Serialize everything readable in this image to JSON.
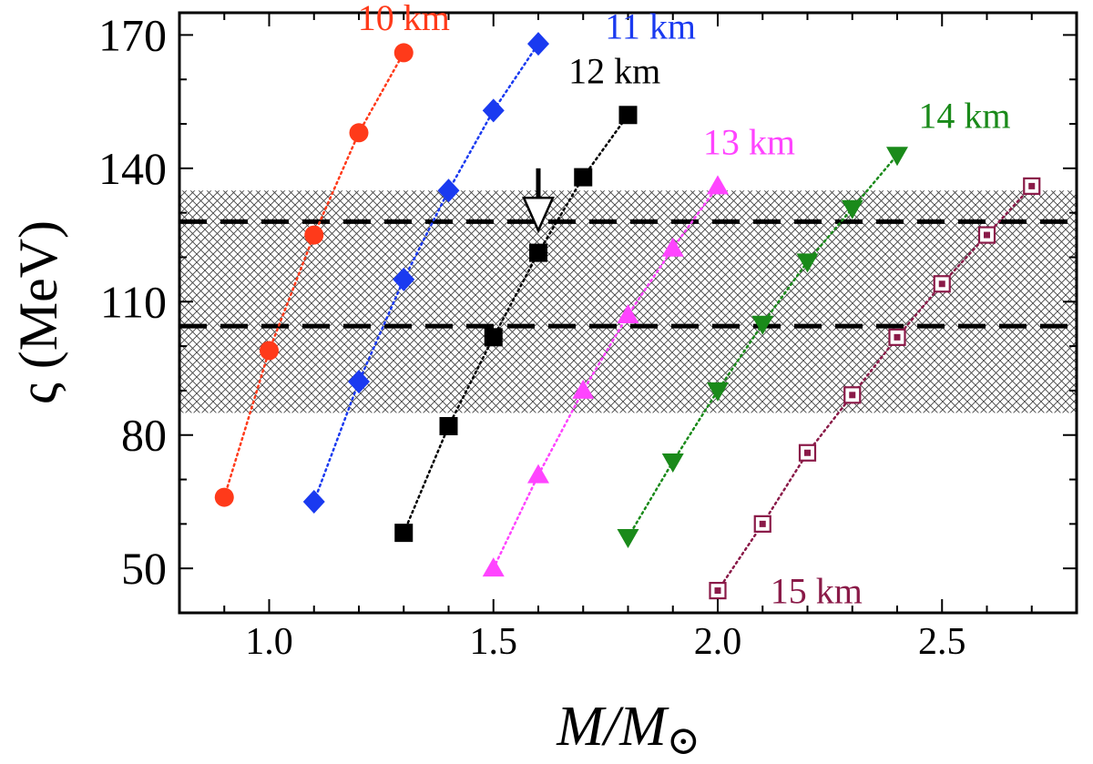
{
  "chart_data": {
    "type": "scatter",
    "xlabel": "M/M⊙",
    "xlabel_main": "M/M",
    "xlabel_sub": "⊙",
    "ylabel": "ς (MeV)",
    "xlim": [
      0.8,
      2.8
    ],
    "ylim": [
      40,
      175
    ],
    "x_ticks": [
      1.0,
      1.5,
      2.0,
      2.5
    ],
    "x_tick_labels": [
      "1.0",
      "1.5",
      "2.0",
      "2.5"
    ],
    "x_minor_step": 0.1,
    "y_ticks": [
      50,
      80,
      110,
      140,
      170
    ],
    "y_tick_labels": [
      "50",
      "80",
      "110",
      "140",
      "170"
    ],
    "y_minor_step": 10,
    "band": [
      85,
      135
    ],
    "hlines": [
      104.5,
      128
    ],
    "arrow": {
      "x": 1.6,
      "y_top": 140,
      "y_tip": 126
    },
    "series": [
      {
        "name": "10 km",
        "color": "#ff3a1a",
        "marker": "circle",
        "x": [
          0.9,
          1.0,
          1.1,
          1.2,
          1.3
        ],
        "y": [
          66,
          99,
          125,
          148,
          166
        ],
        "label_at": [
          1.3,
          174
        ]
      },
      {
        "name": "11 km",
        "color": "#1a3af0",
        "marker": "diamond",
        "x": [
          1.1,
          1.2,
          1.3,
          1.4,
          1.5,
          1.6
        ],
        "y": [
          65,
          92,
          115,
          135,
          153,
          168
        ],
        "label_at": [
          1.85,
          172
        ]
      },
      {
        "name": "12 km",
        "color": "#000000",
        "marker": "square",
        "x": [
          1.3,
          1.4,
          1.5,
          1.6,
          1.7,
          1.8
        ],
        "y": [
          58,
          82,
          102,
          121,
          138,
          152
        ],
        "label_at": [
          1.77,
          162
        ]
      },
      {
        "name": "13 km",
        "color": "#ff44ff",
        "marker": "triangle-up",
        "x": [
          1.5,
          1.6,
          1.7,
          1.8,
          1.9,
          2.0
        ],
        "y": [
          50,
          71,
          90,
          107,
          122,
          136
        ],
        "label_at": [
          2.07,
          146
        ]
      },
      {
        "name": "14 km",
        "color": "#1a8a1a",
        "marker": "triangle-down",
        "x": [
          1.8,
          1.9,
          2.0,
          2.1,
          2.2,
          2.3,
          2.4
        ],
        "y": [
          57,
          74,
          90,
          105,
          119,
          131,
          143
        ],
        "label_at": [
          2.55,
          152
        ]
      },
      {
        "name": "15 km",
        "color": "#8a1a48",
        "marker": "square-open",
        "x": [
          2.0,
          2.1,
          2.2,
          2.3,
          2.4,
          2.5,
          2.6,
          2.7
        ],
        "y": [
          45,
          60,
          76,
          89,
          102,
          114,
          125,
          136
        ],
        "label_at": [
          2.22,
          45
        ]
      }
    ]
  }
}
